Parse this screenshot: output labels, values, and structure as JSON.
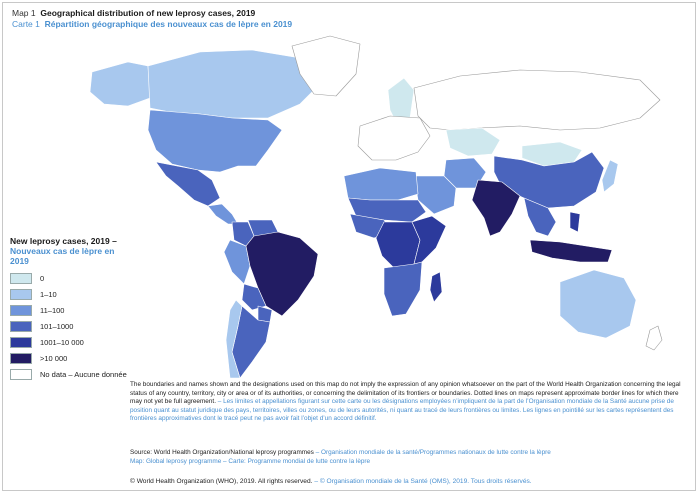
{
  "title": {
    "en_label": "Map 1",
    "en_text": "Geographical distribution of new leprosy cases, 2019",
    "fr_label": "Carte 1",
    "fr_text": "Répartition géographique des nouveaux cas de lèpre en 2019"
  },
  "legend": {
    "title_en": "New leprosy cases, 2019 –",
    "title_fr": "Nouveaux cas de lèpre en 2019",
    "items": [
      {
        "label": "0",
        "color": "#cfe8ee"
      },
      {
        "label": "1–10",
        "color": "#a8c8ee"
      },
      {
        "label": "11–100",
        "color": "#6f94db"
      },
      {
        "label": "101–1000",
        "color": "#4a64bd"
      },
      {
        "label": "1001–10 000",
        "color": "#2c3a9c"
      },
      {
        "label": ">10 000",
        "color": "#221c63"
      },
      {
        "label": "No data – Aucune donnée",
        "color": "#ffffff"
      }
    ]
  },
  "disclaimer": {
    "en": "The boundaries and names shown and the designations used on this map do not imply the expression of any opinion whatsoever on the part of the World Health Organization concerning the legal status of any country, territory, city or area or of its authorities, or concerning the delimitation of its frontiers or boundaries. Dotted lines on maps represent approximate border lines for which there may not yet be full agreement.",
    "fr": " – Les limites et appellations figurant sur cette carte ou les désignations employées n’impliquent de la part de l’Organisation mondiale de la Santé aucune prise de position quant au statut juridique des pays, territoires, villes ou zones, ou de leurs autorités, ni quant au tracé de leurs frontières ou limites. Les lignes en pointillé sur les cartes représentent des frontières approximatives dont le tracé peut ne pas avoir fait l’objet d’un accord définitif."
  },
  "source": {
    "line1_en": "Source: World Health Organization/National leprosy programmes",
    "line1_fr": " – Organisation mondiale de la santé/Programmes nationaux de lutte contre la lèpre",
    "line2_fr": "Map: Global leprosy programme – Carte: Programme mondial de lutte contre la lèpre"
  },
  "copyright": {
    "en": "© World Health Organization (WHO), 2019. All rights reserved.",
    "fr": " – © Organisation mondiale de la Santé (OMS), 2019. Tous droits réservés."
  },
  "map": {
    "regions": [
      {
        "name": "Alaska",
        "category": "1–10"
      },
      {
        "name": "Canada",
        "category": "1–10"
      },
      {
        "name": "United States",
        "category": "11–100"
      },
      {
        "name": "Greenland",
        "category": "No data – Aucune donnée"
      },
      {
        "name": "Mexico",
        "category": "101–1000"
      },
      {
        "name": "Central America",
        "category": "11–100"
      },
      {
        "name": "Colombia",
        "category": "101–1000"
      },
      {
        "name": "Venezuela",
        "category": "101–1000"
      },
      {
        "name": "Brazil",
        "category": ">10 000"
      },
      {
        "name": "Peru",
        "category": "11–100"
      },
      {
        "name": "Bolivia",
        "category": "101–1000"
      },
      {
        "name": "Paraguay",
        "category": "101–1000"
      },
      {
        "name": "Argentina",
        "category": "101–1000"
      },
      {
        "name": "Chile",
        "category": "1–10"
      },
      {
        "name": "Europe",
        "category": "No data – Aucune donnée"
      },
      {
        "name": "Scandinavia",
        "category": "0"
      },
      {
        "name": "Russia",
        "category": "No data – Aucune donnée"
      },
      {
        "name": "Kazakhstan",
        "category": "0"
      },
      {
        "name": "Mongolia",
        "category": "0"
      },
      {
        "name": "China",
        "category": "101–1000"
      },
      {
        "name": "Japan",
        "category": "1–10"
      },
      {
        "name": "North Africa",
        "category": "11–100"
      },
      {
        "name": "Sahel",
        "category": "101–1000"
      },
      {
        "name": "West Africa",
        "category": "101–1000"
      },
      {
        "name": "Central Africa",
        "category": "1001–10 000"
      },
      {
        "name": "East Africa",
        "category": "1001–10 000"
      },
      {
        "name": "Southern Africa",
        "category": "101–1000"
      },
      {
        "name": "Madagascar",
        "category": "1001–10 000"
      },
      {
        "name": "Arabian Peninsula",
        "category": "11–100"
      },
      {
        "name": "Iran",
        "category": "11–100"
      },
      {
        "name": "India",
        "category": ">10 000"
      },
      {
        "name": "Southeast Asia",
        "category": "101–1000"
      },
      {
        "name": "Indonesia",
        "category": ">10 000"
      },
      {
        "name": "Philippines",
        "category": "1001–10 000"
      },
      {
        "name": "Australia",
        "category": "1–10"
      },
      {
        "name": "New Zealand",
        "category": "No data – Aucune donnée"
      }
    ]
  }
}
